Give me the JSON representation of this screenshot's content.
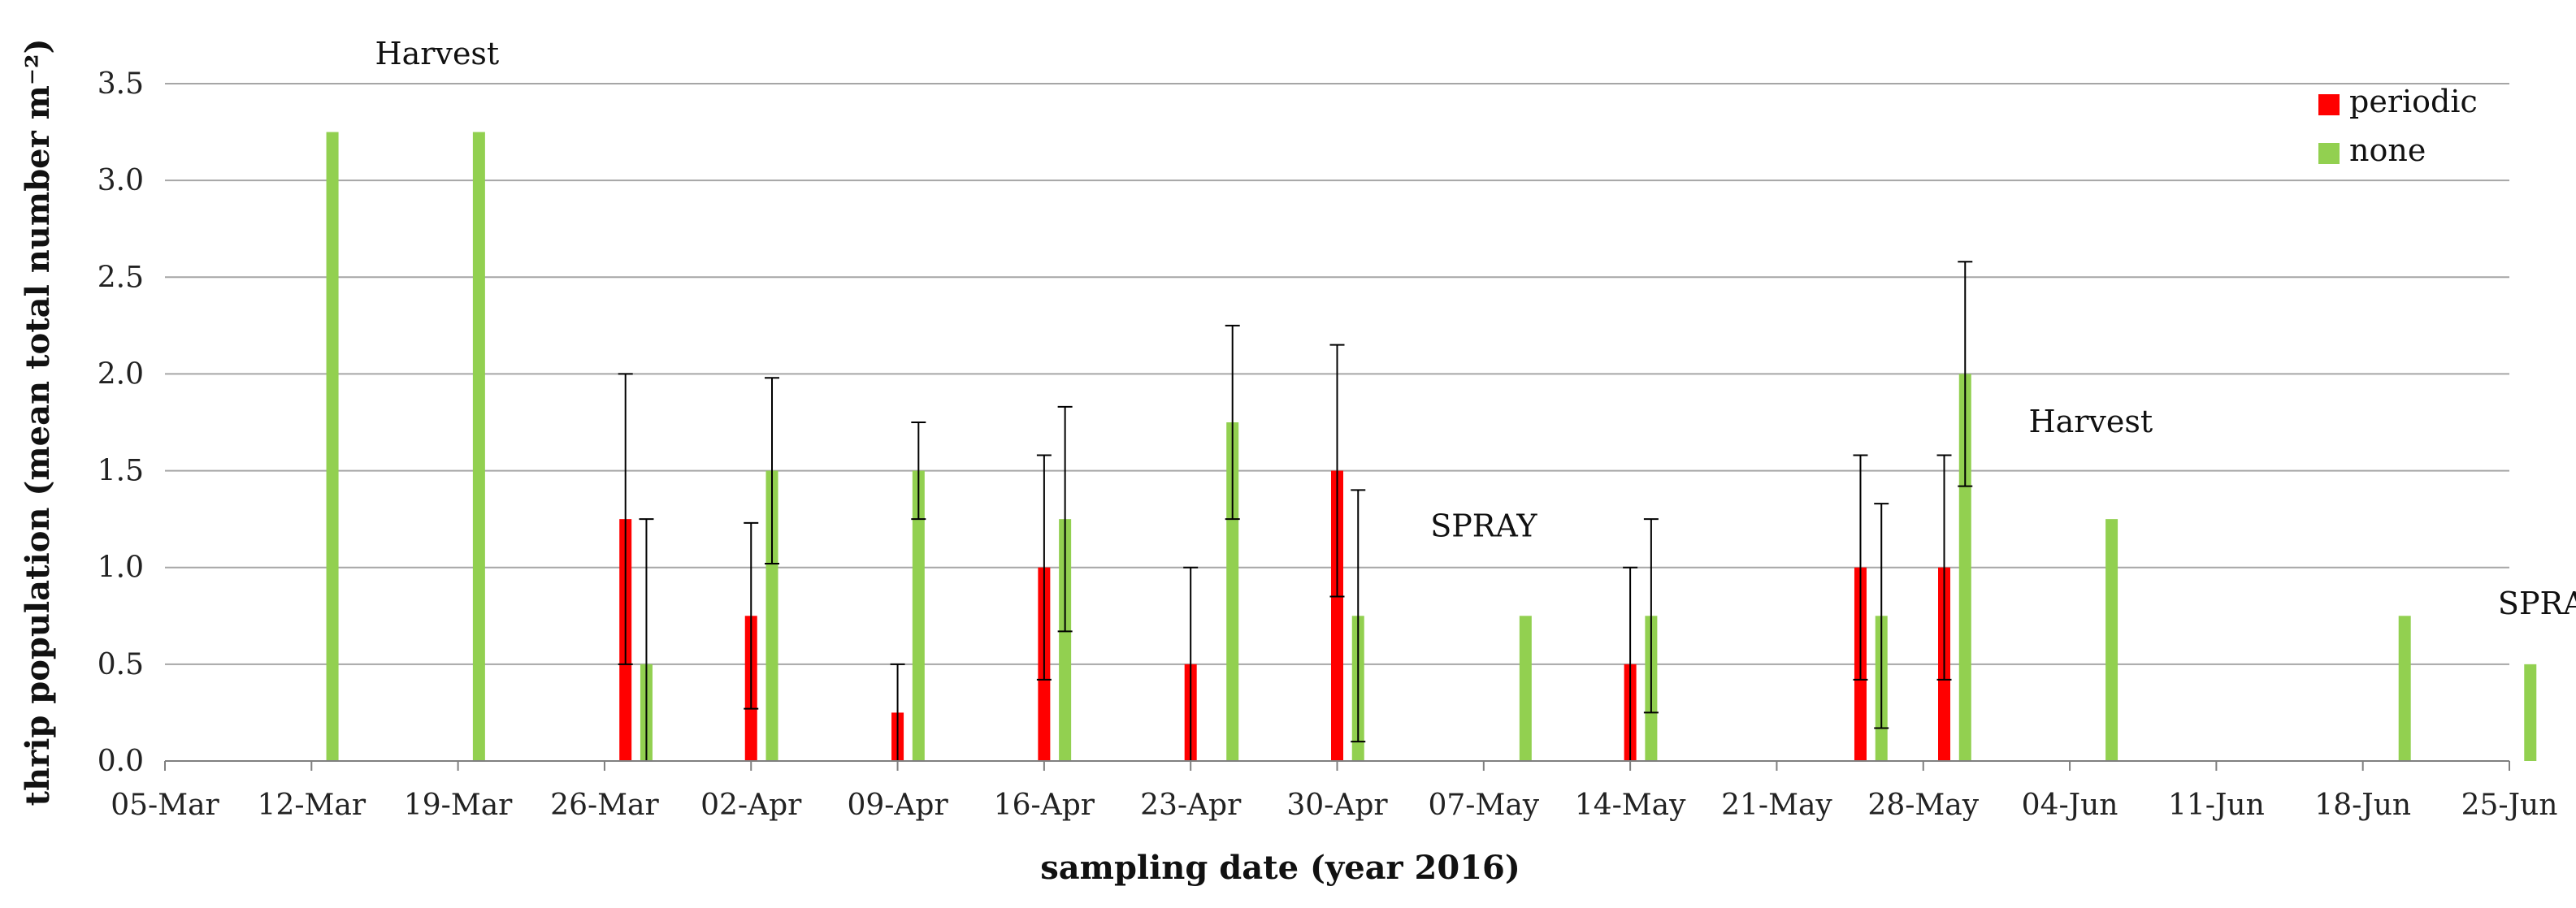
{
  "chart_data": {
    "type": "bar",
    "title": "",
    "xlabel": "sampling date (year 2016)",
    "ylabel": "thrip population (mean total number m⁻²)",
    "ylim": [
      0,
      3.5
    ],
    "yticks": [
      "0.0",
      "0.5",
      "1.0",
      "1.5",
      "2.0",
      "2.5",
      "3.0",
      "3.5"
    ],
    "grid": "horizontal",
    "legend_position": "top-right",
    "x_axis": "date",
    "x_start": "2016-03-05",
    "x_end": "2016-06-25",
    "xticks": [
      "05-Mar",
      "12-Mar",
      "19-Mar",
      "26-Mar",
      "02-Apr",
      "09-Apr",
      "16-Apr",
      "23-Apr",
      "30-Apr",
      "07-May",
      "14-May",
      "21-May",
      "28-May",
      "04-Jun",
      "11-Jun",
      "18-Jun",
      "25-Jun"
    ],
    "series": [
      {
        "name": "periodic",
        "color": "#ff0000",
        "points": [
          {
            "date": "2016-03-27",
            "value": 1.25,
            "err_low": 0.5,
            "err_high": 2.0
          },
          {
            "date": "2016-04-02",
            "value": 0.75,
            "err_low": 0.27,
            "err_high": 1.23
          },
          {
            "date": "2016-04-09",
            "value": 0.25,
            "err_low": 0.0,
            "err_high": 0.5
          },
          {
            "date": "2016-04-16",
            "value": 1.0,
            "err_low": 0.42,
            "err_high": 1.58
          },
          {
            "date": "2016-04-23",
            "value": 0.5,
            "err_low": 0.0,
            "err_high": 1.0
          },
          {
            "date": "2016-04-30",
            "value": 1.5,
            "err_low": 0.85,
            "err_high": 2.15
          },
          {
            "date": "2016-05-14",
            "value": 0.5,
            "err_low": 0.0,
            "err_high": 1.0
          },
          {
            "date": "2016-05-25",
            "value": 1.0,
            "err_low": 0.42,
            "err_high": 1.58
          },
          {
            "date": "2016-05-29",
            "value": 1.0,
            "err_low": 0.42,
            "err_high": 1.58
          }
        ]
      },
      {
        "name": "none",
        "color": "#92d050",
        "points": [
          {
            "date": "2016-03-13",
            "value": 3.25
          },
          {
            "date": "2016-03-20",
            "value": 3.25
          },
          {
            "date": "2016-03-28",
            "value": 0.5,
            "err_low": 0.0,
            "err_high": 1.25
          },
          {
            "date": "2016-04-03",
            "value": 1.5,
            "err_low": 1.02,
            "err_high": 1.98
          },
          {
            "date": "2016-04-10",
            "value": 1.5,
            "err_low": 1.25,
            "err_high": 1.75
          },
          {
            "date": "2016-04-17",
            "value": 1.25,
            "err_low": 0.67,
            "err_high": 1.83
          },
          {
            "date": "2016-04-25",
            "value": 1.75,
            "err_low": 1.25,
            "err_high": 2.25
          },
          {
            "date": "2016-05-01",
            "value": 0.75,
            "err_low": 0.1,
            "err_high": 1.4
          },
          {
            "date": "2016-05-09",
            "value": 0.75
          },
          {
            "date": "2016-05-15",
            "value": 0.75,
            "err_low": 0.25,
            "err_high": 1.25
          },
          {
            "date": "2016-05-26",
            "value": 0.75,
            "err_low": 0.17,
            "err_high": 1.33
          },
          {
            "date": "2016-05-30",
            "value": 2.0,
            "err_low": 1.42,
            "err_high": 2.58
          },
          {
            "date": "2016-06-06",
            "value": 1.25
          },
          {
            "date": "2016-06-20",
            "value": 0.75
          },
          {
            "date": "2016-06-26",
            "value": 0.5
          }
        ]
      }
    ],
    "annotations": [
      {
        "text": "Harvest",
        "date": "2016-03-18",
        "y": 3.6
      },
      {
        "text": "Harvest",
        "date": "2016-06-05",
        "y": 1.7
      },
      {
        "text": "SPRAY",
        "date": "2016-05-07",
        "y": 1.16
      },
      {
        "text": "SPRAY",
        "date": "2016-06-27",
        "y": 0.76
      }
    ]
  }
}
